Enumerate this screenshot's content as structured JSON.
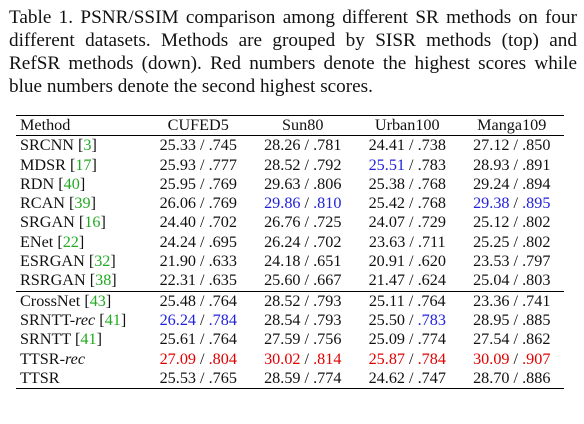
{
  "caption": "Table 1. PSNR/SSIM comparison among different SR methods on four different datasets. Methods are grouped by SISR methods (top) and RefSR methods (down). Red numbers denote the highest scores while blue numbers denote the second highest scores.",
  "columns": [
    "Method",
    "CUFED5",
    "Sun80",
    "Urban100",
    "Manga109"
  ],
  "colors": {
    "highest": "#e00000",
    "second": "#2222dd",
    "citation": "#22aa22"
  },
  "sisr_rows": [
    {
      "name": "SRCNN",
      "italic": "",
      "cite": "3",
      "cells": [
        {
          "p": "25.33",
          "s": ".745",
          "pc": "",
          "sc": ""
        },
        {
          "p": "28.26",
          "s": ".781",
          "pc": "",
          "sc": ""
        },
        {
          "p": "24.41",
          "s": ".738",
          "pc": "",
          "sc": ""
        },
        {
          "p": "27.12",
          "s": ".850",
          "pc": "",
          "sc": ""
        }
      ]
    },
    {
      "name": "MDSR",
      "italic": "",
      "cite": "17",
      "cells": [
        {
          "p": "25.93",
          "s": ".777",
          "pc": "",
          "sc": ""
        },
        {
          "p": "28.52",
          "s": ".792",
          "pc": "",
          "sc": ""
        },
        {
          "p": "25.51",
          "s": ".783",
          "pc": "blue",
          "sc": ""
        },
        {
          "p": "28.93",
          "s": ".891",
          "pc": "",
          "sc": ""
        }
      ]
    },
    {
      "name": "RDN",
      "italic": "",
      "cite": "40",
      "cells": [
        {
          "p": "25.95",
          "s": ".769",
          "pc": "",
          "sc": ""
        },
        {
          "p": "29.63",
          "s": ".806",
          "pc": "",
          "sc": ""
        },
        {
          "p": "25.38",
          "s": ".768",
          "pc": "",
          "sc": ""
        },
        {
          "p": "29.24",
          "s": ".894",
          "pc": "",
          "sc": ""
        }
      ]
    },
    {
      "name": "RCAN",
      "italic": "",
      "cite": "39",
      "cells": [
        {
          "p": "26.06",
          "s": ".769",
          "pc": "",
          "sc": ""
        },
        {
          "p": "29.86",
          "s": ".810",
          "pc": "blue",
          "sc": "blue"
        },
        {
          "p": "25.42",
          "s": ".768",
          "pc": "",
          "sc": ""
        },
        {
          "p": "29.38",
          "s": ".895",
          "pc": "blue",
          "sc": "blue"
        }
      ]
    },
    {
      "name": "SRGAN",
      "italic": "",
      "cite": "16",
      "cells": [
        {
          "p": "24.40",
          "s": ".702",
          "pc": "",
          "sc": ""
        },
        {
          "p": "26.76",
          "s": ".725",
          "pc": "",
          "sc": ""
        },
        {
          "p": "24.07",
          "s": ".729",
          "pc": "",
          "sc": ""
        },
        {
          "p": "25.12",
          "s": ".802",
          "pc": "",
          "sc": ""
        }
      ]
    },
    {
      "name": "ENet",
      "italic": "",
      "cite": "22",
      "cells": [
        {
          "p": "24.24",
          "s": ".695",
          "pc": "",
          "sc": ""
        },
        {
          "p": "26.24",
          "s": ".702",
          "pc": "",
          "sc": ""
        },
        {
          "p": "23.63",
          "s": ".711",
          "pc": "",
          "sc": ""
        },
        {
          "p": "25.25",
          "s": ".802",
          "pc": "",
          "sc": ""
        }
      ]
    },
    {
      "name": "ESRGAN",
      "italic": "",
      "cite": "32",
      "cells": [
        {
          "p": "21.90",
          "s": ".633",
          "pc": "",
          "sc": ""
        },
        {
          "p": "24.18",
          "s": ".651",
          "pc": "",
          "sc": ""
        },
        {
          "p": "20.91",
          "s": ".620",
          "pc": "",
          "sc": ""
        },
        {
          "p": "23.53",
          "s": ".797",
          "pc": "",
          "sc": ""
        }
      ]
    },
    {
      "name": "RSRGAN",
      "italic": "",
      "cite": "38",
      "cells": [
        {
          "p": "22.31",
          "s": ".635",
          "pc": "",
          "sc": ""
        },
        {
          "p": "25.60",
          "s": ".667",
          "pc": "",
          "sc": ""
        },
        {
          "p": "21.47",
          "s": ".624",
          "pc": "",
          "sc": ""
        },
        {
          "p": "25.04",
          "s": ".803",
          "pc": "",
          "sc": ""
        }
      ]
    }
  ],
  "refsr_rows": [
    {
      "name": "CrossNet",
      "italic": "",
      "cite": "43",
      "cells": [
        {
          "p": "25.48",
          "s": ".764",
          "pc": "",
          "sc": ""
        },
        {
          "p": "28.52",
          "s": ".793",
          "pc": "",
          "sc": ""
        },
        {
          "p": "25.11",
          "s": ".764",
          "pc": "",
          "sc": ""
        },
        {
          "p": "23.36",
          "s": ".741",
          "pc": "",
          "sc": ""
        }
      ]
    },
    {
      "name": "SRNTT-",
      "italic": "rec",
      "cite": "41",
      "cells": [
        {
          "p": "26.24",
          "s": ".784",
          "pc": "blue",
          "sc": "blue"
        },
        {
          "p": "28.54",
          "s": ".793",
          "pc": "",
          "sc": ""
        },
        {
          "p": "25.50",
          "s": ".783",
          "pc": "",
          "sc": "blue"
        },
        {
          "p": "28.95",
          "s": ".885",
          "pc": "",
          "sc": ""
        }
      ]
    },
    {
      "name": "SRNTT",
      "italic": "",
      "cite": "41",
      "cells": [
        {
          "p": "25.61",
          "s": ".764",
          "pc": "",
          "sc": ""
        },
        {
          "p": "27.59",
          "s": ".756",
          "pc": "",
          "sc": ""
        },
        {
          "p": "25.09",
          "s": ".774",
          "pc": "",
          "sc": ""
        },
        {
          "p": "27.54",
          "s": ".862",
          "pc": "",
          "sc": ""
        }
      ]
    },
    {
      "name": "TTSR-",
      "italic": "rec",
      "cite": "",
      "cells": [
        {
          "p": "27.09",
          "s": ".804",
          "pc": "red",
          "sc": "red"
        },
        {
          "p": "30.02",
          "s": ".814",
          "pc": "red",
          "sc": "red"
        },
        {
          "p": "25.87",
          "s": ".784",
          "pc": "red",
          "sc": "red"
        },
        {
          "p": "30.09",
          "s": ".907",
          "pc": "red",
          "sc": "red"
        }
      ]
    },
    {
      "name": "TTSR",
      "italic": "",
      "cite": "",
      "cells": [
        {
          "p": "25.53",
          "s": ".765",
          "pc": "",
          "sc": ""
        },
        {
          "p": "28.59",
          "s": ".774",
          "pc": "",
          "sc": ""
        },
        {
          "p": "24.62",
          "s": ".747",
          "pc": "",
          "sc": ""
        },
        {
          "p": "28.70",
          "s": ".886",
          "pc": "",
          "sc": ""
        }
      ]
    }
  ]
}
